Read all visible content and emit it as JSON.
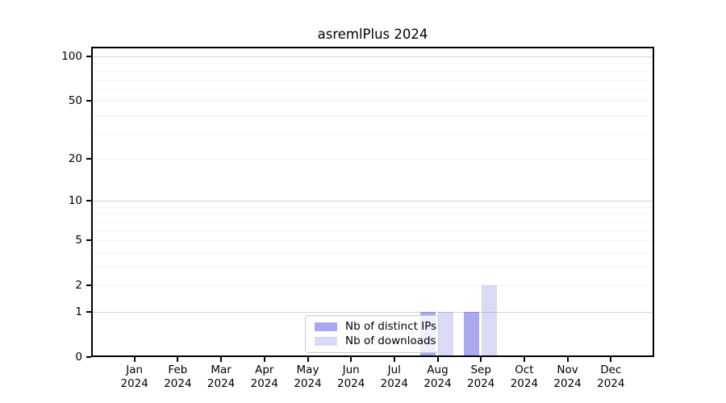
{
  "chart_data": {
    "type": "bar",
    "title": "asremlPlus 2024",
    "x_categories": [
      {
        "month": "Jan",
        "year": "2024"
      },
      {
        "month": "Feb",
        "year": "2024"
      },
      {
        "month": "Mar",
        "year": "2024"
      },
      {
        "month": "Apr",
        "year": "2024"
      },
      {
        "month": "May",
        "year": "2024"
      },
      {
        "month": "Jun",
        "year": "2024"
      },
      {
        "month": "Jul",
        "year": "2024"
      },
      {
        "month": "Aug",
        "year": "2024"
      },
      {
        "month": "Sep",
        "year": "2024"
      },
      {
        "month": "Oct",
        "year": "2024"
      },
      {
        "month": "Nov",
        "year": "2024"
      },
      {
        "month": "Dec",
        "year": "2024"
      }
    ],
    "series": [
      {
        "name": "Nb of distinct IPs",
        "color": "#a9a9f1",
        "values": [
          0,
          0,
          0,
          0,
          0,
          0,
          0,
          1,
          1,
          0,
          0,
          0
        ]
      },
      {
        "name": "Nb of downloads",
        "color": "#dadaf7",
        "values": [
          0,
          0,
          0,
          0,
          0,
          0,
          0,
          1,
          2,
          0,
          0,
          0
        ]
      }
    ],
    "yscale": "log1p",
    "ylim": [
      0,
      100
    ],
    "yticks": [
      100,
      50,
      20,
      10,
      5,
      2,
      1,
      0
    ],
    "grid_major": [
      1,
      10,
      100
    ],
    "grid_minor": [
      2,
      3,
      4,
      5,
      6,
      7,
      8,
      9,
      20,
      30,
      40,
      50,
      60,
      70,
      80,
      90
    ],
    "legend_position": "lower center"
  }
}
